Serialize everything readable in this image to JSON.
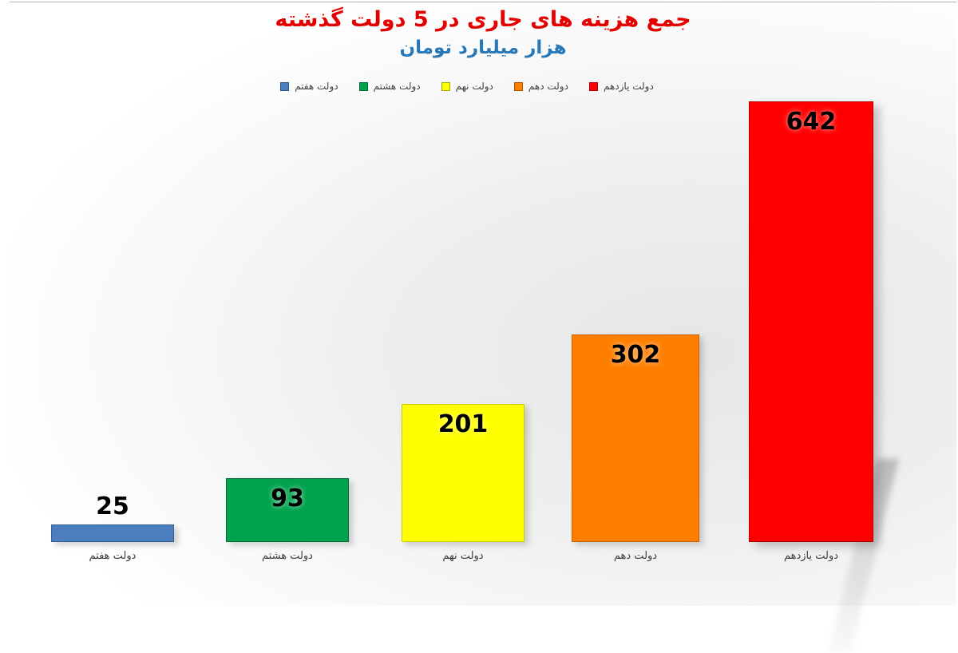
{
  "chart_data": {
    "type": "bar",
    "title": "جمع هزینه های جاری در 5 دولت گذشته",
    "title_color": "#e50000",
    "subtitle": "هزار میلیارد تومان",
    "subtitle_color": "#2878b8",
    "categories": [
      "دولت هفتم",
      "دولت هشتم",
      "دولت نهم",
      "دولت دهم",
      "دولت یازدهم"
    ],
    "values": [
      25,
      93,
      201,
      302,
      642
    ],
    "colors": [
      "#4a7ebe",
      "#00a24d",
      "#ffff00",
      "#ff7e00",
      "#ff0000"
    ],
    "border_colors": [
      "#36618f",
      "#007138",
      "#cbcb00",
      "#c66200",
      "#ad0000"
    ],
    "value_label_color": "#000000",
    "xlabel": "",
    "ylabel": "",
    "ylim": [
      0,
      660
    ],
    "grid": false,
    "y_axis_visible": false,
    "value_labels": true,
    "legend_position": "top",
    "legend": [
      {
        "label": "دولت هفتم",
        "color": "#4a7ebe"
      },
      {
        "label": "دولت هشتم",
        "color": "#00a24d"
      },
      {
        "label": "دولت نهم",
        "color": "#ffff00"
      },
      {
        "label": "دولت دهم",
        "color": "#ff7e00"
      },
      {
        "label": "دولت یازدهم",
        "color": "#ff0000"
      }
    ]
  }
}
